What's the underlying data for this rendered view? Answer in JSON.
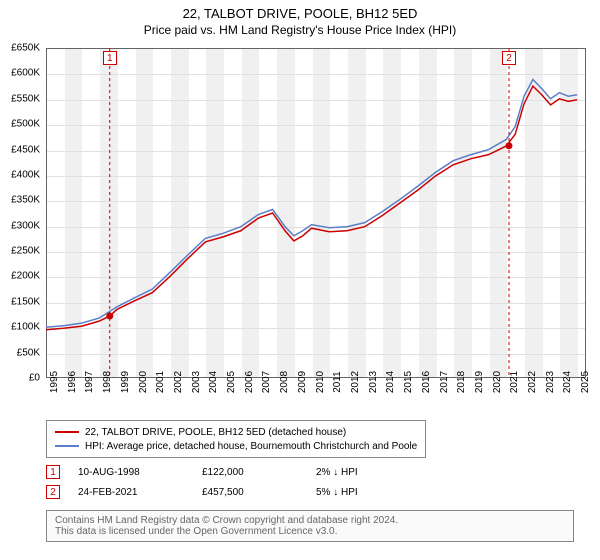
{
  "title": "22, TALBOT DRIVE, POOLE, BH12 5ED",
  "subtitle": "Price paid vs. HM Land Registry's House Price Index (HPI)",
  "chart": {
    "type": "line",
    "background_color": "#ffffff",
    "alt_band_color": "#f0f0f0",
    "grid_color": "#e0e0e0",
    "border_color": "#646464",
    "x_years": [
      1995,
      1996,
      1997,
      1998,
      1999,
      2000,
      2001,
      2002,
      2003,
      2004,
      2005,
      2006,
      2007,
      2008,
      2009,
      2010,
      2011,
      2012,
      2013,
      2014,
      2015,
      2016,
      2017,
      2018,
      2019,
      2020,
      2021,
      2022,
      2023,
      2024,
      2025
    ],
    "x_min": 1995,
    "x_max": 2025.5,
    "ylim": [
      0,
      650
    ],
    "ytick_step": 50,
    "y_unit_prefix": "£",
    "y_unit_suffix": "K",
    "label_fontsize": 10,
    "series": [
      {
        "name": "22, TALBOT DRIVE, POOLE, BH12 5ED (detached house)",
        "color": "#cc0000",
        "width": 1.5,
        "data": [
          [
            1995,
            95
          ],
          [
            1996,
            98
          ],
          [
            1997,
            102
          ],
          [
            1998,
            112
          ],
          [
            1998.6,
            122
          ],
          [
            1999,
            135
          ],
          [
            2000,
            152
          ],
          [
            2001,
            168
          ],
          [
            2002,
            200
          ],
          [
            2003,
            235
          ],
          [
            2004,
            268
          ],
          [
            2005,
            278
          ],
          [
            2006,
            290
          ],
          [
            2007,
            315
          ],
          [
            2007.8,
            325
          ],
          [
            2008.5,
            290
          ],
          [
            2009,
            270
          ],
          [
            2009.5,
            280
          ],
          [
            2010,
            295
          ],
          [
            2011,
            288
          ],
          [
            2012,
            290
          ],
          [
            2013,
            298
          ],
          [
            2014,
            320
          ],
          [
            2015,
            345
          ],
          [
            2016,
            370
          ],
          [
            2017,
            398
          ],
          [
            2018,
            420
          ],
          [
            2019,
            432
          ],
          [
            2020,
            440
          ],
          [
            2021,
            457
          ],
          [
            2021.5,
            480
          ],
          [
            2022,
            540
          ],
          [
            2022.5,
            575
          ],
          [
            2023,
            558
          ],
          [
            2023.5,
            538
          ],
          [
            2024,
            550
          ],
          [
            2024.5,
            545
          ],
          [
            2025,
            548
          ]
        ]
      },
      {
        "name": "HPI: Average price, detached house, Bournemouth Christchurch and Poole",
        "color": "#5b7ec8",
        "width": 1.5,
        "data": [
          [
            1995,
            100
          ],
          [
            1996,
            103
          ],
          [
            1997,
            108
          ],
          [
            1998,
            118
          ],
          [
            1999,
            140
          ],
          [
            2000,
            158
          ],
          [
            2001,
            175
          ],
          [
            2002,
            208
          ],
          [
            2003,
            242
          ],
          [
            2004,
            275
          ],
          [
            2005,
            285
          ],
          [
            2006,
            298
          ],
          [
            2007,
            322
          ],
          [
            2007.8,
            332
          ],
          [
            2008.5,
            298
          ],
          [
            2009,
            280
          ],
          [
            2009.5,
            290
          ],
          [
            2010,
            302
          ],
          [
            2011,
            296
          ],
          [
            2012,
            298
          ],
          [
            2013,
            306
          ],
          [
            2014,
            328
          ],
          [
            2015,
            352
          ],
          [
            2016,
            378
          ],
          [
            2017,
            405
          ],
          [
            2018,
            428
          ],
          [
            2019,
            440
          ],
          [
            2020,
            450
          ],
          [
            2021,
            470
          ],
          [
            2021.5,
            495
          ],
          [
            2022,
            555
          ],
          [
            2022.5,
            588
          ],
          [
            2023,
            570
          ],
          [
            2023.5,
            550
          ],
          [
            2024,
            562
          ],
          [
            2024.5,
            555
          ],
          [
            2025,
            558
          ]
        ]
      }
    ],
    "price_markers": [
      {
        "n": "1",
        "x": 1998.6,
        "y": 122
      },
      {
        "n": "2",
        "x": 2021.15,
        "y": 457.5
      }
    ]
  },
  "legend": {
    "items": [
      {
        "color": "#cc0000",
        "label": "22, TALBOT DRIVE, POOLE, BH12 5ED (detached house)"
      },
      {
        "color": "#5b7ec8",
        "label": "HPI: Average price, detached house, Bournemouth Christchurch and Poole"
      }
    ]
  },
  "price_paid": [
    {
      "n": "1",
      "date": "10-AUG-1998",
      "price": "£122,000",
      "hpi": "2% ↓ HPI"
    },
    {
      "n": "2",
      "date": "24-FEB-2021",
      "price": "£457,500",
      "hpi": "5% ↓ HPI"
    }
  ],
  "footer_line1": "Contains HM Land Registry data © Crown copyright and database right 2024.",
  "footer_line2": "This data is licensed under the Open Government Licence v3.0."
}
